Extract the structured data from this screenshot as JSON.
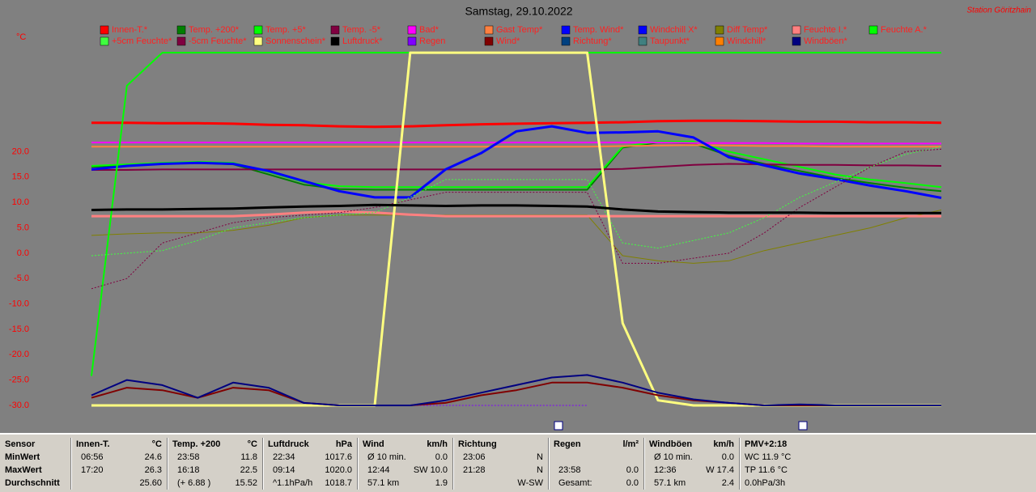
{
  "chart_data": {
    "type": "line",
    "title": "Samstag, 29.10.2022",
    "station": "Station Göritzhain",
    "y_label": "°C",
    "x": [
      0,
      1,
      2,
      3,
      4,
      5,
      6,
      7,
      8,
      9,
      10,
      11,
      12,
      13,
      14,
      15,
      16,
      17,
      18,
      19,
      20,
      21,
      22,
      23,
      24
    ],
    "xlim": [
      0,
      24
    ],
    "ylim": [
      -30,
      40
    ],
    "yticks": [
      {
        "value": 20,
        "label": "20.0"
      },
      {
        "value": 15,
        "label": "15.0"
      },
      {
        "value": 10,
        "label": "10.0"
      },
      {
        "value": 5,
        "label": "5.0"
      },
      {
        "value": 0,
        "label": "0.0"
      },
      {
        "value": -5,
        "label": "-5.0"
      },
      {
        "value": -10,
        "label": "-10.0"
      },
      {
        "value": -15,
        "label": "-15.0"
      },
      {
        "value": -20,
        "label": "-20.0"
      },
      {
        "value": -25,
        "label": "-25.0"
      },
      {
        "value": -30,
        "label": "-30.0"
      }
    ],
    "series": [
      {
        "name": "Innen-T.*",
        "color": "#ff0000",
        "width": 3,
        "values": [
          25.7,
          25.7,
          25.6,
          25.6,
          25.5,
          25.3,
          25.2,
          25.0,
          24.9,
          25.0,
          25.2,
          25.4,
          25.5,
          25.6,
          25.7,
          25.8,
          26.0,
          26.1,
          26.1,
          26.0,
          25.9,
          25.9,
          25.8,
          25.8,
          25.7
        ]
      },
      {
        "name": "Temp. +200*",
        "color": "#008000",
        "width": 2,
        "values": [
          17.0,
          17.3,
          17.6,
          17.8,
          17.5,
          15.5,
          13.5,
          12.6,
          12.5,
          12.5,
          12.5,
          12.5,
          12.5,
          12.5,
          12.5,
          20.8,
          21.8,
          21.6,
          19.2,
          17.6,
          16.2,
          14.8,
          13.8,
          12.9,
          12.2
        ]
      },
      {
        "name": "Temp. +5*",
        "color": "#00ff00",
        "width": 2,
        "values": [
          17.2,
          17.5,
          17.8,
          18.0,
          17.8,
          16.0,
          14.0,
          13.2,
          13.0,
          13.0,
          13.0,
          13.0,
          13.0,
          13.0,
          13.0,
          21.0,
          22.0,
          22.0,
          20.0,
          18.5,
          17.0,
          15.5,
          14.5,
          13.8,
          13.0
        ]
      },
      {
        "name": "Temp. -5*",
        "color": "#800040",
        "width": 2,
        "values": [
          16.4,
          16.4,
          16.5,
          16.5,
          16.5,
          16.5,
          16.5,
          16.5,
          16.5,
          16.5,
          16.5,
          16.5,
          16.5,
          16.5,
          16.5,
          16.6,
          17.0,
          17.4,
          17.6,
          17.5,
          17.4,
          17.4,
          17.3,
          17.3,
          17.2
        ]
      },
      {
        "name": "Bad*",
        "color": "#ff00ff",
        "width": 2,
        "values": [
          21.8,
          21.8,
          21.8,
          21.8,
          21.8,
          21.8,
          21.8,
          21.8,
          21.8,
          21.8,
          21.8,
          21.8,
          21.8,
          21.8,
          21.8,
          21.8,
          21.8,
          21.7,
          21.7,
          21.7,
          21.6,
          21.6,
          21.6,
          21.6,
          21.6
        ]
      },
      {
        "name": "Gast Temp*",
        "color": "#ff8040",
        "width": 2,
        "values": [
          21.0,
          21.0,
          21.0,
          21.0,
          21.0,
          21.0,
          21.0,
          21.0,
          21.0,
          21.0,
          21.0,
          21.0,
          21.0,
          21.0,
          21.0,
          21.1,
          21.2,
          21.3,
          21.2,
          21.1,
          21.1,
          21.0,
          21.0,
          21.0,
          21.0
        ]
      },
      {
        "name": "Temp. Wind*",
        "color": "#0000ff",
        "width": 3,
        "values": [
          16.5,
          17.2,
          17.6,
          17.8,
          17.6,
          16.2,
          14.2,
          12.2,
          11.0,
          11.0,
          16.5,
          19.7,
          24.0,
          25.0,
          23.7,
          23.8,
          24.0,
          22.8,
          18.9,
          17.3,
          15.7,
          14.6,
          13.3,
          12.2,
          10.9
        ]
      },
      {
        "name": "Windchill X*",
        "color": "#0000ff",
        "width": 2,
        "values": [
          null,
          null,
          null,
          null,
          null,
          null,
          null,
          null,
          null,
          null,
          null,
          null,
          null,
          null,
          null,
          null,
          null,
          null,
          null,
          null,
          null,
          null,
          null,
          null,
          null
        ]
      },
      {
        "name": "Diff Temp*",
        "color": "#808000",
        "width": 1,
        "values": [
          3.5,
          3.8,
          4.0,
          4.0,
          4.5,
          5.5,
          7.0,
          7.5,
          7.5,
          7.5,
          7.5,
          7.5,
          7.5,
          7.5,
          7.5,
          -0.5,
          -1.5,
          -2.0,
          -1.5,
          0.5,
          2.0,
          3.5,
          5.0,
          7.0,
          8.5
        ]
      },
      {
        "name": "Feuchte I.*",
        "color": "#ff8080",
        "width": 3,
        "values": [
          7.3,
          7.3,
          7.3,
          7.3,
          7.3,
          7.6,
          8.0,
          8.2,
          8.0,
          7.6,
          7.3,
          7.3,
          7.3,
          7.3,
          7.3,
          7.3,
          7.3,
          7.3,
          7.3,
          7.3,
          7.3,
          7.3,
          7.3,
          7.3,
          7.3
        ]
      },
      {
        "name": "Feuchte A.*",
        "color": "#00ff00",
        "width": 2,
        "values": [
          -24.2,
          33.0,
          39.5,
          39.5,
          39.5,
          39.5,
          39.5,
          39.5,
          39.5,
          39.5,
          39.5,
          39.5,
          39.5,
          39.5,
          39.5,
          39.5,
          39.5,
          39.5,
          39.5,
          39.5,
          39.5,
          39.5,
          39.5,
          39.5,
          39.5
        ]
      },
      {
        "name": "+5cm Feuchte*",
        "color": "#40ff40",
        "width": 1,
        "dashed": true,
        "values": [
          -0.5,
          0.0,
          0.5,
          2.5,
          5.0,
          6.0,
          7.0,
          7.5,
          8.0,
          11.0,
          14.5,
          14.5,
          14.5,
          14.5,
          14.5,
          2.0,
          1.0,
          2.5,
          4.0,
          7.0,
          11.0,
          14.0,
          17.0,
          19.5,
          21.0
        ]
      },
      {
        "name": "-5cm Feuchte*",
        "color": "#800040",
        "width": 1,
        "dashed": true,
        "values": [
          -7.0,
          -5.0,
          2.0,
          4.0,
          6.0,
          7.0,
          7.5,
          8.0,
          9.0,
          10.5,
          12.0,
          12.0,
          12.0,
          12.0,
          12.0,
          -2.0,
          -2.0,
          -1.0,
          0.0,
          4.0,
          9.0,
          13.0,
          17.0,
          20.0,
          20.5
        ]
      },
      {
        "name": "Sonnenschein*",
        "color": "#ffff80",
        "width": 3,
        "values": [
          -30,
          -30,
          -30,
          -30,
          -30,
          -30,
          -30,
          -30,
          -30,
          39.5,
          39.5,
          39.5,
          39.5,
          39.5,
          39.5,
          -13.8,
          -29.0,
          -30,
          -30,
          -30,
          -30,
          -30,
          -30,
          -30,
          -30
        ]
      },
      {
        "name": "Luftdruck*",
        "color": "#000000",
        "width": 3,
        "values": [
          8.5,
          8.6,
          8.6,
          8.7,
          8.8,
          9.0,
          9.2,
          9.3,
          9.5,
          9.4,
          9.3,
          9.4,
          9.4,
          9.3,
          9.2,
          8.6,
          8.2,
          8.1,
          8.0,
          8.0,
          8.0,
          7.9,
          7.9,
          7.9,
          7.9
        ]
      },
      {
        "name": "Regen",
        "color": "#8000ff",
        "width": 1,
        "dashed": true,
        "values": [
          null,
          null,
          null,
          null,
          null,
          null,
          null,
          null,
          null,
          -30,
          -30,
          -30,
          -30,
          -30,
          -30,
          null,
          null,
          null,
          null,
          null,
          null,
          null,
          null,
          null,
          null
        ]
      },
      {
        "name": "Wind*",
        "color": "#800000",
        "width": 2,
        "values": [
          -28.5,
          -26.5,
          -27.0,
          -28.5,
          -26.5,
          -27.0,
          -29.5,
          -30,
          -30,
          -30,
          -29.5,
          -28.0,
          -27.0,
          -25.5,
          -25.5,
          -26.5,
          -28.0,
          -29.0,
          -29.5,
          -30,
          -30,
          -30,
          -30,
          -30,
          -30
        ]
      },
      {
        "name": "Richtung*",
        "color": "#004080",
        "width": 1,
        "values": [
          null,
          null,
          null,
          null,
          null,
          null,
          null,
          null,
          null,
          null,
          null,
          null,
          null,
          null,
          null,
          null,
          null,
          null,
          null,
          null,
          null,
          null,
          null,
          null,
          null
        ]
      },
      {
        "name": "Taupunkt*",
        "color": "#408080",
        "width": 2,
        "values": [
          null,
          null,
          null,
          null,
          null,
          null,
          null,
          null,
          null,
          null,
          null,
          null,
          null,
          null,
          null,
          null,
          null,
          null,
          null,
          null,
          null,
          null,
          null,
          null,
          null
        ]
      },
      {
        "name": "Windchill*",
        "color": "#ff8000",
        "width": 2,
        "values": [
          null,
          null,
          null,
          null,
          null,
          null,
          null,
          null,
          null,
          null,
          null,
          null,
          null,
          null,
          null,
          null,
          null,
          null,
          null,
          null,
          null,
          null,
          null,
          null,
          null
        ]
      },
      {
        "name": "Windböen*",
        "color": "#000080",
        "width": 2,
        "values": [
          -28.0,
          -25.0,
          -26.0,
          -28.5,
          -25.5,
          -26.5,
          -29.5,
          -30,
          -30,
          -30,
          -29.0,
          -27.5,
          -26.0,
          -24.5,
          -24.0,
          -25.5,
          -27.5,
          -28.8,
          -29.5,
          -30,
          -29.8,
          -30,
          -30,
          -30,
          -30
        ]
      }
    ]
  },
  "table": {
    "columns": [
      {
        "header": "Sensor",
        "rows": [
          [
            "MinWert"
          ],
          [
            "MaxWert"
          ],
          [
            "Durchschnitt"
          ]
        ]
      },
      {
        "header": "Innen-T.",
        "unit": "°C",
        "rows": [
          [
            "06:56",
            "24.6"
          ],
          [
            "17:20",
            "26.3"
          ],
          [
            null,
            "25.60"
          ]
        ]
      },
      {
        "header": "Temp. +200",
        "unit": "°C",
        "rows": [
          [
            "23:58",
            "11.8"
          ],
          [
            "16:18",
            "22.5"
          ],
          [
            "(+ 6.88 )",
            "15.52"
          ]
        ]
      },
      {
        "header": "Luftdruck",
        "unit": "hPa",
        "rows": [
          [
            "22:34",
            "1017.6"
          ],
          [
            "09:14",
            "1020.0"
          ],
          [
            "^1.1hPa/h",
            "1018.7"
          ]
        ]
      },
      {
        "header": "Wind",
        "unit": "km/h",
        "rows": [
          [
            "Ø 10 min.",
            "0.0"
          ],
          [
            "12:44",
            "SW 10.0"
          ],
          [
            "57.1 km",
            "1.9"
          ]
        ]
      },
      {
        "header": "Richtung",
        "rows": [
          [
            "23:06",
            "N"
          ],
          [
            "21:28",
            "N"
          ],
          [
            null,
            "W-SW"
          ]
        ]
      },
      {
        "header": "Regen",
        "unit": "l/m²",
        "rows": [
          null,
          [
            "23:58",
            "0.0"
          ],
          [
            "Gesamt:",
            "0.0"
          ]
        ]
      },
      {
        "header": "Windböen",
        "unit": "km/h",
        "rows": [
          [
            "Ø 10 min.",
            "0.0"
          ],
          [
            "12:36",
            "W 17.4"
          ],
          [
            "57.1 km",
            "2.4"
          ]
        ]
      },
      {
        "header": "PMV+2:18",
        "rows": [
          [
            "WC 11.9 °C"
          ],
          [
            "TP 11.6 °C"
          ],
          [
            "0.0hPa/3h"
          ]
        ]
      }
    ]
  }
}
